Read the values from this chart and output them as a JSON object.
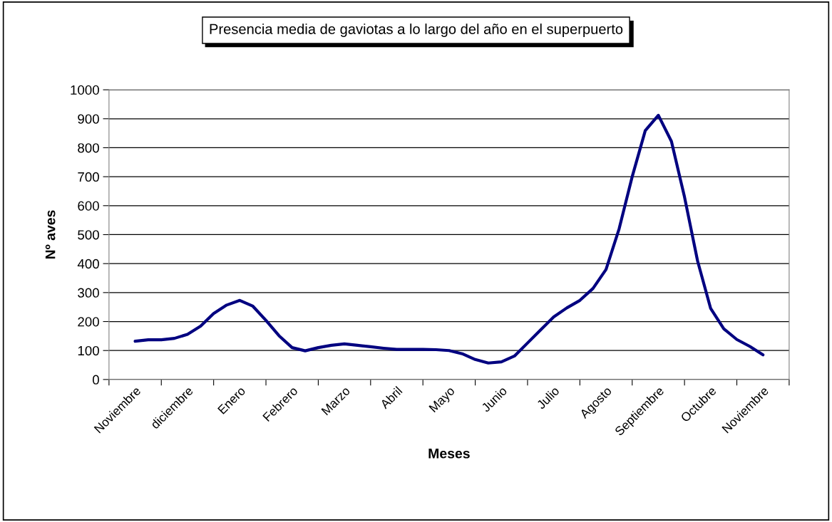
{
  "chart_data": {
    "type": "line",
    "title": "Presencia media de gaviotas a lo largo del año en el superpuerto",
    "xlabel": "Meses",
    "ylabel": "Nº aves",
    "categories": [
      "Noviembre",
      null,
      null,
      null,
      "diciembre",
      null,
      null,
      null,
      "Enero",
      null,
      null,
      null,
      "Febrero",
      null,
      null,
      null,
      "Marzo",
      null,
      null,
      null,
      "Abril",
      null,
      null,
      null,
      "Mayo",
      null,
      null,
      null,
      "Junio",
      null,
      null,
      null,
      "Julio",
      null,
      null,
      null,
      "Agosto",
      null,
      null,
      null,
      "Septiembre",
      null,
      null,
      null,
      "Octubre",
      null,
      null,
      null,
      "Noviembre"
    ],
    "series": [
      {
        "color": "#000080",
        "values": [
          132,
          137,
          137,
          142,
          156,
          184,
          228,
          257,
          273,
          253,
          204,
          151,
          110,
          99,
          110,
          118,
          123,
          118,
          113,
          108,
          104,
          104,
          104,
          103,
          100,
          89,
          69,
          57,
          61,
          81,
          126,
          171,
          216,
          247,
          273,
          314,
          380,
          520,
          700,
          859,
          912,
          822,
          630,
          409,
          245,
          175,
          138,
          114,
          85
        ]
      }
    ],
    "ylim": [
      0,
      1000
    ],
    "yticks": [
      0,
      100,
      200,
      300,
      400,
      500,
      600,
      700,
      800,
      900,
      1000
    ],
    "grid": "y",
    "marker": "none",
    "line_style": "solid"
  }
}
